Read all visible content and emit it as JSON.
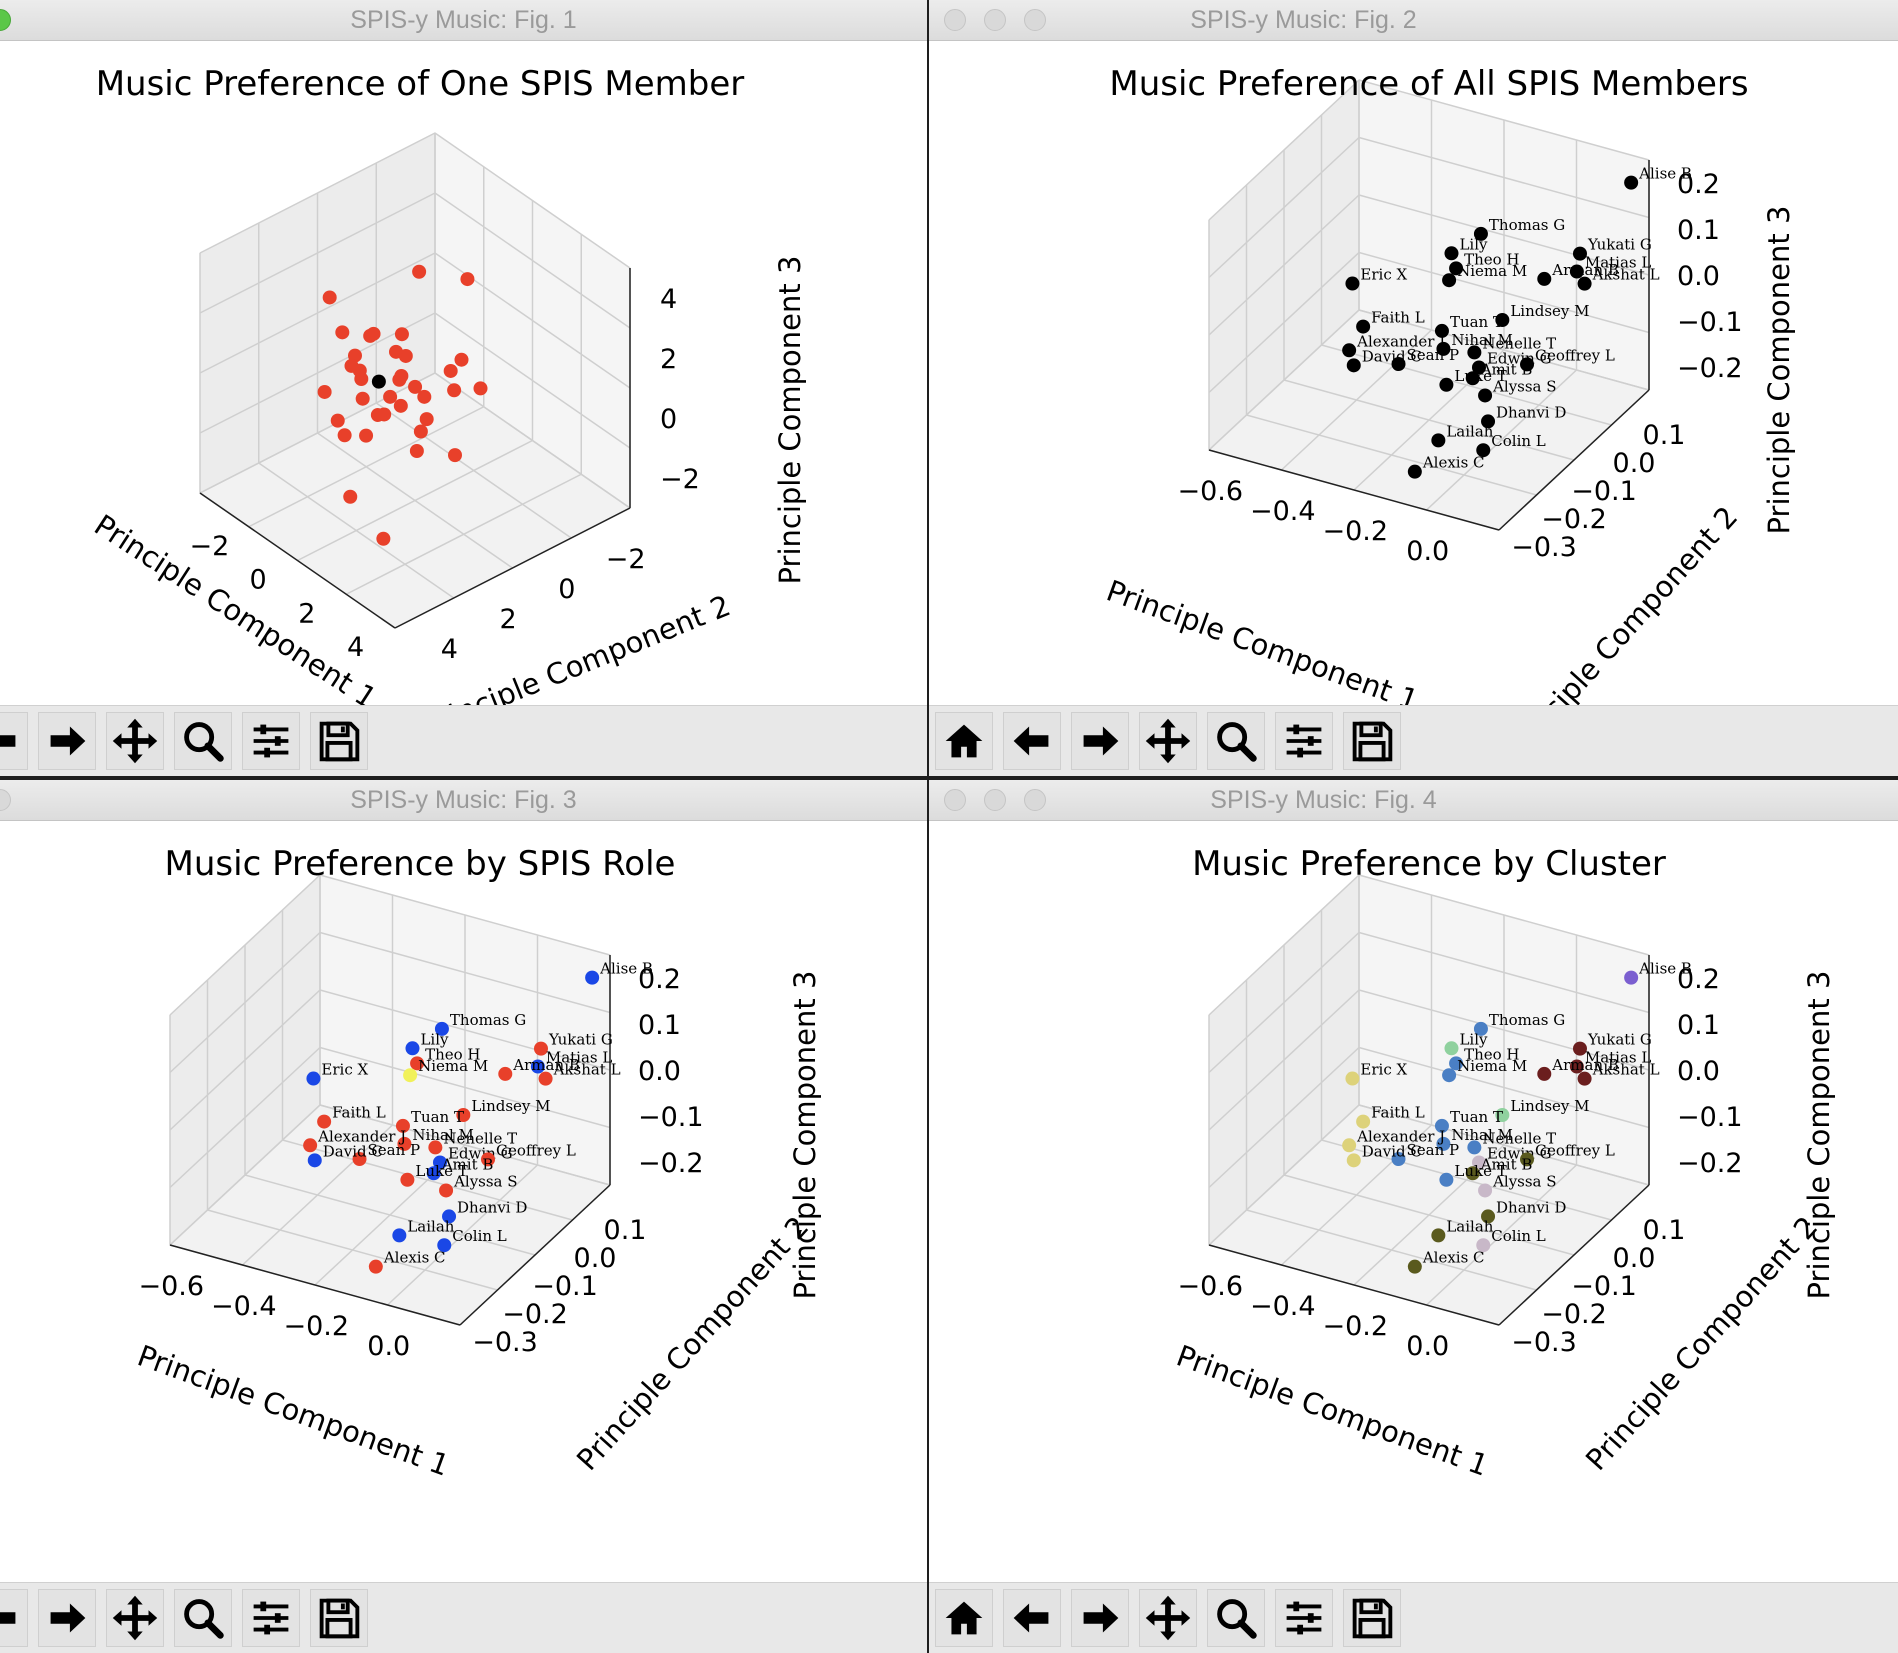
{
  "windows": [
    {
      "title": "SPIS-y Music: Fig. 1",
      "toolbar_buttons": [
        "back-icon",
        "forward-icon",
        "pan-icon",
        "zoom-icon",
        "configure-icon",
        "save-icon"
      ],
      "chart_data": {
        "type": "scatter",
        "title": "Music Preference of One SPIS Member",
        "xlabel": "Principle Component 1",
        "ylabel": "Principle Component 2",
        "zlabel": "Principle Component 3",
        "x_ticks": [
          "−2",
          "0",
          "2",
          "4"
        ],
        "y_ticks": [
          "−2",
          "0",
          "2",
          "4"
        ],
        "z_ticks": [
          "4",
          "2",
          "0",
          "−2"
        ],
        "grid": true,
        "colors": {
          "default": "#e8402a",
          "highlight": "#000000"
        },
        "series": [
          {
            "values": [
              [
                0.4,
                1.5,
                0.2
              ],
              [
                -1.1,
                0.7,
                0.8
              ],
              [
                -0.6,
                0.5,
                0.4
              ],
              [
                -0.3,
                0.2,
                1.0
              ],
              [
                0.2,
                1.2,
                0.6
              ],
              [
                0.1,
                0.9,
                0.0
              ],
              [
                0.9,
                1.4,
                0.2
              ],
              [
                -0.9,
                -0.5,
                0.3
              ],
              [
                1.8,
                0.4,
                -0.6
              ],
              [
                1.0,
                1.2,
                -0.8
              ],
              [
                -0.2,
                -0.4,
                -0.8
              ],
              [
                -2.5,
                1.0,
                1.8
              ],
              [
                0.5,
                3.2,
                3.0
              ],
              [
                3.8,
                -2.4,
                -1.0
              ],
              [
                2.2,
                -2.2,
                -0.6
              ],
              [
                -1.0,
                2.8,
                2.6
              ],
              [
                0.7,
                0.2,
                0.1
              ],
              [
                -0.5,
                1.8,
                1.3
              ],
              [
                1.4,
                2.0,
                0.4
              ],
              [
                0.0,
                -0.8,
                0.0
              ],
              [
                -1.5,
                0.6,
                1.4
              ],
              [
                1.6,
                0.9,
                0.1
              ],
              [
                0.3,
                -0.2,
                0.6
              ],
              [
                -0.7,
                1.0,
                1.6
              ],
              [
                1.1,
                2.5,
                1.0
              ],
              [
                0.6,
                0.8,
                0.9
              ],
              [
                -0.1,
                1.6,
                0.9
              ],
              [
                2.4,
                1.2,
                -0.8
              ],
              [
                -0.4,
                0.0,
                1.2
              ],
              [
                0.8,
                -0.5,
                -0.2
              ],
              [
                1.5,
                1.8,
                1.2
              ],
              [
                0.2,
                0.4,
                -0.3
              ],
              [
                -1.2,
                1.3,
                1.1
              ],
              [
                0.9,
                0.6,
                0.3
              ],
              [
                2.0,
                2.4,
                0.6
              ],
              [
                0.1,
                1.1,
                1.4
              ]
            ]
          }
        ],
        "highlight_point": [
          0.0,
          0.6,
          0.6
        ]
      }
    },
    {
      "title": "SPIS-y Music: Fig. 2",
      "toolbar_buttons": [
        "home-icon",
        "back-icon",
        "forward-icon",
        "pan-icon",
        "zoom-icon",
        "configure-icon",
        "save-icon"
      ],
      "chart_data": {
        "type": "scatter",
        "title": "Music Preference of All SPIS Members",
        "xlabel": "Principle Component 1",
        "ylabel": "Principle Component 2",
        "zlabel": "Principle Component 3",
        "x_ticks": [
          "−0.6",
          "−0.4",
          "−0.2",
          "0.0"
        ],
        "y_ticks": [
          "0.1",
          "0.0",
          "−0.1",
          "−0.2",
          "−0.3"
        ],
        "z_ticks": [
          "0.2",
          "0.1",
          "0.0",
          "−0.1",
          "−0.2"
        ],
        "grid": true,
        "point_color": "#000000"
      }
    },
    {
      "title": "SPIS-y Music: Fig. 3",
      "toolbar_buttons": [
        "back-icon",
        "forward-icon",
        "pan-icon",
        "zoom-icon",
        "configure-icon",
        "save-icon"
      ],
      "chart_data": {
        "type": "scatter",
        "title": "Music Preference by SPIS Role",
        "xlabel": "Principle Component 1",
        "ylabel": "Principle Component 2",
        "zlabel": "Principle Component 3",
        "x_ticks": [
          "−0.6",
          "−0.4",
          "−0.2",
          "0.0"
        ],
        "y_ticks": [
          "0.1",
          "0.0",
          "−0.1",
          "−0.2",
          "−0.3"
        ],
        "z_ticks": [
          "0.2",
          "0.1",
          "0.0",
          "−0.1",
          "−0.2"
        ],
        "grid": true
      }
    },
    {
      "title": "SPIS-y Music: Fig. 4",
      "toolbar_buttons": [
        "home-icon",
        "back-icon",
        "forward-icon",
        "pan-icon",
        "zoom-icon",
        "configure-icon",
        "save-icon"
      ],
      "chart_data": {
        "type": "scatter",
        "title": "Music Preference by Cluster",
        "xlabel": "Principle Component 1",
        "ylabel": "Principle Component 2",
        "zlabel": "Principle Component 3",
        "x_ticks": [
          "−0.6",
          "−0.4",
          "−0.2",
          "0.0"
        ],
        "y_ticks": [
          "0.1",
          "0.0",
          "−0.1",
          "−0.2",
          "−0.3"
        ],
        "z_ticks": [
          "0.2",
          "0.1",
          "0.0",
          "−0.1",
          "−0.2"
        ],
        "grid": true
      }
    }
  ],
  "members": [
    {
      "name": "Alise B",
      "pc": [
        0.02,
        0.14,
        0.16
      ],
      "role": "blue",
      "cluster": "#7b5fd0"
    },
    {
      "name": "Yukati G",
      "pc": [
        -0.08,
        0.1,
        0.02
      ],
      "role": "red",
      "cluster": "#6b1e1e"
    },
    {
      "name": "Matias L",
      "pc": [
        -0.08,
        0.09,
        -0.01
      ],
      "role": "blue",
      "cluster": "#6b1e1e"
    },
    {
      "name": "Akshat L",
      "pc": [
        -0.06,
        0.09,
        -0.03
      ],
      "role": "red",
      "cluster": "#6b1e1e"
    },
    {
      "name": "Arman B",
      "pc": [
        -0.14,
        0.06,
        -0.02
      ],
      "role": "red",
      "cluster": "#6b1e1e"
    },
    {
      "name": "Thomas G",
      "pc": [
        -0.32,
        0.08,
        0.02
      ],
      "role": "blue",
      "cluster": "#4a7fc4"
    },
    {
      "name": "Lily",
      "pc": [
        -0.38,
        0.06,
        -0.02
      ],
      "role": "blue",
      "cluster": "#8fd19e"
    },
    {
      "name": "Theo H",
      "pc": [
        -0.36,
        0.05,
        -0.04
      ],
      "role": "red",
      "cluster": "#4a7fc4"
    },
    {
      "name": "Niema M",
      "pc": [
        -0.37,
        0.04,
        -0.06
      ],
      "role": "yellow",
      "cluster": "#4a7fc4"
    },
    {
      "name": "Lindsey M",
      "pc": [
        -0.2,
        0.0,
        -0.08
      ],
      "role": "red",
      "cluster": "#8fd19e"
    },
    {
      "name": "Tuan T",
      "pc": [
        -0.34,
        -0.02,
        -0.12
      ],
      "role": "red",
      "cluster": "#4a7fc4"
    },
    {
      "name": "Nihal M",
      "pc": [
        -0.32,
        -0.04,
        -0.14
      ],
      "role": "red",
      "cluster": "#4a7fc4"
    },
    {
      "name": "Nenelle T",
      "pc": [
        -0.24,
        -0.04,
        -0.13
      ],
      "role": "red",
      "cluster": "#4a7fc4"
    },
    {
      "name": "Edwin G",
      "pc": [
        -0.22,
        -0.05,
        -0.15
      ],
      "role": "blue",
      "cluster": "#c8b8c8"
    },
    {
      "name": "Geoffrey L",
      "pc": [
        -0.12,
        -0.02,
        -0.14
      ],
      "role": "red",
      "cluster": "#5a5a1e"
    },
    {
      "name": "Amit B",
      "pc": [
        -0.22,
        -0.07,
        -0.16
      ],
      "role": "blue",
      "cluster": "#5a5a1e"
    },
    {
      "name": "Alyssa S",
      "pc": [
        -0.18,
        -0.08,
        -0.18
      ],
      "role": "red",
      "cluster": "#c8b8c8"
    },
    {
      "name": "Luke T",
      "pc": [
        -0.28,
        -0.08,
        -0.18
      ],
      "role": "red",
      "cluster": "#4a7fc4"
    },
    {
      "name": "Dhanvi D",
      "pc": [
        -0.14,
        -0.12,
        -0.2
      ],
      "role": "blue",
      "cluster": "#5a5a1e"
    },
    {
      "name": "Sean P",
      "pc": [
        -0.42,
        -0.06,
        -0.18
      ],
      "role": "red",
      "cluster": "#4a7fc4"
    },
    {
      "name": "Lailah",
      "pc": [
        -0.22,
        -0.18,
        -0.22
      ],
      "role": "blue",
      "cluster": "#5a5a1e"
    },
    {
      "name": "Colin L",
      "pc": [
        -0.12,
        -0.16,
        -0.23
      ],
      "role": "blue",
      "cluster": "#c8b8c8"
    },
    {
      "name": "Alexis C",
      "pc": [
        -0.2,
        -0.28,
        -0.22
      ],
      "role": "red",
      "cluster": "#5a5a1e"
    },
    {
      "name": "Eric X",
      "pc": [
        -0.62,
        0.04,
        -0.12
      ],
      "role": "blue",
      "cluster": "#ddd27a"
    },
    {
      "name": "Faith L",
      "pc": [
        -0.56,
        0.0,
        -0.17
      ],
      "role": "red",
      "cluster": "#ddd27a"
    },
    {
      "name": "Alexander J",
      "pc": [
        -0.58,
        -0.02,
        -0.21
      ],
      "role": "red",
      "cluster": "#ddd27a"
    },
    {
      "name": "David C",
      "pc": [
        -0.56,
        -0.03,
        -0.23
      ],
      "role": "blue",
      "cluster": "#ddd27a"
    }
  ],
  "role_colors": {
    "red": "#e8402a",
    "blue": "#1a47e6",
    "yellow": "#f1f15a"
  }
}
